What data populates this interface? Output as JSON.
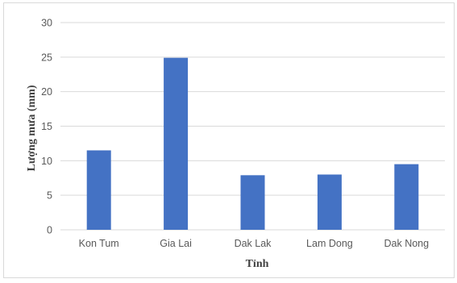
{
  "chart_data": {
    "type": "bar",
    "title": "",
    "xlabel": "Tỉnh",
    "ylabel": "Lượng mưa (mm)",
    "categories": [
      "Kon Tum",
      "Gia Lai",
      "Dak Lak",
      "Lam Dong",
      "Dak Nong"
    ],
    "values": [
      11.5,
      24.9,
      7.9,
      8.0,
      9.5
    ],
    "ylim": [
      0,
      30
    ],
    "yticks": [
      0,
      5,
      10,
      15,
      20,
      25,
      30
    ],
    "grid": true,
    "legend": "none",
    "bar_color": "#4472c4",
    "grid_color": "#d9d9d9"
  }
}
